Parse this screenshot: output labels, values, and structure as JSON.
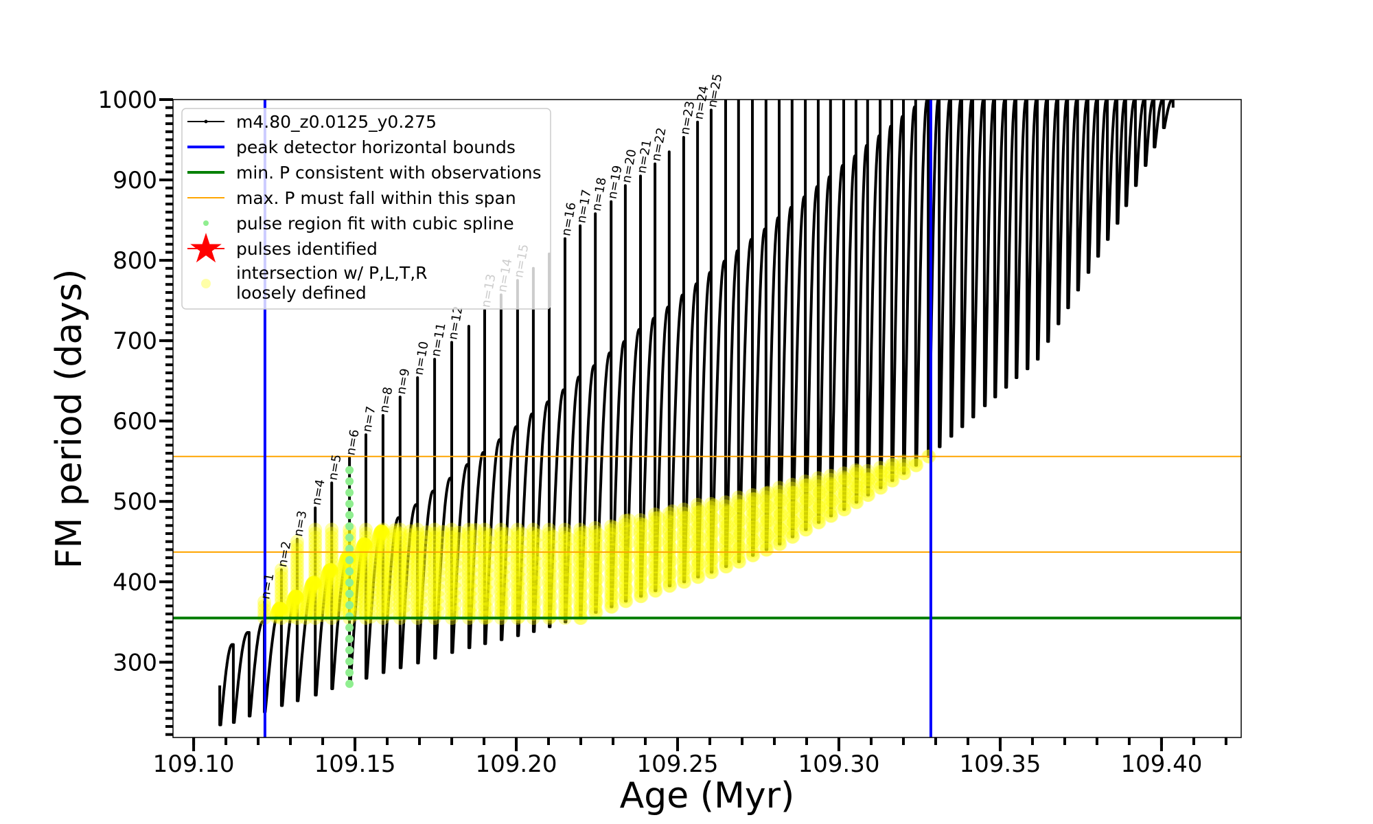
{
  "chart_data": {
    "type": "line",
    "xlabel": "Age (Myr)",
    "ylabel": "FM period (days)",
    "xlim": [
      109.0936,
      109.4247
    ],
    "ylim": [
      206.3,
      1000
    ],
    "xticks": [
      "109.10",
      "109.15",
      "109.20",
      "109.25",
      "109.30",
      "109.35",
      "109.40"
    ],
    "xtick_values": [
      109.1,
      109.15,
      109.2,
      109.25,
      109.3,
      109.35,
      109.4
    ],
    "xminor_step": 0.01,
    "yticks": [
      "300",
      "400",
      "500",
      "600",
      "700",
      "800",
      "900",
      "1000"
    ],
    "ytick_values": [
      300,
      400,
      500,
      600,
      700,
      800,
      900,
      1000
    ],
    "yminor_step": 10,
    "grid": false,
    "legend_placement": "upper-left",
    "series": [
      {
        "name": "m4.80_z0.0125_y0.275",
        "color": "#000000",
        "pulse_columns": [
          "age_myr",
          "min_period_after_pulse",
          "quiescent_peak_period",
          "pulse_peak_period",
          "label",
          "loosely_defined_upper_period"
        ],
        "pulses": [
          [
            109.1081,
            222,
            271,
            271,
            "",
            null
          ],
          [
            109.1123,
            225,
            322,
            322,
            "",
            null
          ],
          [
            109.1172,
            233,
            337,
            337,
            "",
            null
          ],
          [
            109.1219,
            238,
            351,
            375,
            "n=1",
            375
          ],
          [
            109.1272,
            246,
            367,
            415,
            "n=2",
            415
          ],
          [
            109.1321,
            252,
            382,
            453,
            "n=3",
            453
          ],
          [
            109.1377,
            259,
            399,
            492,
            "n=4",
            465
          ],
          [
            109.1428,
            267,
            415,
            523,
            "n=5",
            465
          ],
          [
            109.1483,
            274,
            431,
            554,
            "n=6",
            465
          ],
          [
            109.1534,
            280,
            447,
            583,
            "n=7",
            465
          ],
          [
            109.1587,
            287,
            463,
            607,
            "n=8",
            465
          ],
          [
            109.164,
            293,
            480,
            630,
            "n=9",
            465
          ],
          [
            109.1694,
            299,
            496,
            654,
            "n=10",
            465
          ],
          [
            109.1747,
            305,
            513,
            677,
            "n=11",
            465
          ],
          [
            109.18,
            312,
            529,
            698,
            "n=12",
            465
          ],
          [
            109.1853,
            318,
            546,
            718,
            "",
            465
          ],
          [
            109.1902,
            323,
            561,
            738,
            "n=13",
            465
          ],
          [
            109.1953,
            328,
            577,
            757,
            "n=14",
            465
          ],
          [
            109.2004,
            333,
            593,
            775,
            "n=15",
            465
          ],
          [
            109.2053,
            338,
            609,
            790,
            "",
            465
          ],
          [
            109.2102,
            344,
            624,
            808,
            "",
            465
          ],
          [
            109.2151,
            350,
            639,
            827,
            "n=16",
            465
          ],
          [
            109.2198,
            355,
            655,
            843,
            "n=17",
            465
          ],
          [
            109.2245,
            362,
            669,
            858,
            "n=18",
            469
          ],
          [
            109.2294,
            369,
            685,
            873,
            "n=19",
            473
          ],
          [
            109.2338,
            376,
            699,
            893,
            "n=20",
            477
          ],
          [
            109.2385,
            382,
            714,
            905,
            "n=21",
            481
          ],
          [
            109.243,
            389,
            728,
            920,
            "n=22",
            485
          ],
          [
            109.2474,
            395,
            742,
            935,
            "",
            489
          ],
          [
            109.2519,
            400,
            757,
            953,
            "n=23",
            493
          ],
          [
            109.2562,
            406,
            771,
            972,
            "n=24",
            496
          ],
          [
            109.2604,
            412,
            785,
            987,
            "n=25",
            500
          ],
          [
            109.2649,
            419,
            799,
            1000,
            "",
            503
          ],
          [
            109.2689,
            425,
            812,
            1000,
            "",
            507
          ],
          [
            109.2732,
            433,
            826,
            1000,
            "",
            511
          ],
          [
            109.2774,
            440,
            839,
            1000,
            "",
            514
          ],
          [
            109.2815,
            447,
            853,
            1000,
            "",
            518
          ],
          [
            109.2855,
            456,
            866,
            1000,
            "",
            522
          ],
          [
            109.2896,
            465,
            879,
            1000,
            "",
            525
          ],
          [
            109.2936,
            474,
            892,
            1000,
            "",
            529
          ],
          [
            109.2974,
            482,
            904,
            1000,
            "",
            532
          ],
          [
            109.3015,
            490,
            918,
            1000,
            "",
            535
          ],
          [
            109.3053,
            499,
            930,
            1000,
            "",
            539
          ],
          [
            109.3089,
            508,
            943,
            1000,
            "",
            542
          ],
          [
            109.3128,
            517,
            955,
            1000,
            "",
            545
          ],
          [
            109.3164,
            526,
            967,
            1000,
            "",
            548
          ],
          [
            109.32,
            535,
            979,
            1000,
            "",
            551
          ],
          [
            109.3238,
            545,
            991,
            1000,
            "",
            554
          ],
          [
            109.3277,
            556,
            1000,
            1000,
            "",
            557
          ],
          [
            109.3311,
            568,
            1000,
            1000,
            "",
            null
          ],
          [
            109.3347,
            581,
            1000,
            1000,
            "",
            null
          ],
          [
            109.3381,
            593,
            1000,
            1000,
            "",
            null
          ],
          [
            109.3415,
            605,
            1000,
            1000,
            "",
            null
          ],
          [
            109.3451,
            619,
            1000,
            1000,
            "",
            null
          ],
          [
            109.3483,
            630,
            1000,
            1000,
            "",
            null
          ],
          [
            109.3517,
            642,
            1000,
            1000,
            "",
            null
          ],
          [
            109.3549,
            654,
            1000,
            1000,
            "",
            null
          ],
          [
            109.3583,
            665,
            1000,
            1000,
            "",
            null
          ],
          [
            109.3615,
            677,
            1000,
            1000,
            "",
            null
          ],
          [
            109.3647,
            699,
            1000,
            1000,
            "",
            null
          ],
          [
            109.3679,
            721,
            1000,
            1000,
            "",
            null
          ],
          [
            109.3709,
            741,
            1000,
            1000,
            "",
            null
          ],
          [
            109.374,
            763,
            1000,
            1000,
            "",
            null
          ],
          [
            109.3772,
            785,
            1000,
            1000,
            "",
            null
          ],
          [
            109.3802,
            805,
            1000,
            1000,
            "",
            null
          ],
          [
            109.3832,
            826,
            1000,
            1000,
            "",
            null
          ],
          [
            109.3862,
            846,
            1000,
            1000,
            "",
            null
          ],
          [
            109.3889,
            868,
            1000,
            1000,
            "",
            null
          ],
          [
            109.3919,
            893,
            1000,
            1000,
            "",
            null
          ],
          [
            109.3949,
            918,
            1000,
            1000,
            "",
            null
          ],
          [
            109.3977,
            941,
            1000,
            1000,
            "",
            null
          ],
          [
            109.4006,
            965,
            1000,
            1000,
            "",
            null
          ],
          [
            109.4036,
            990,
            1000,
            1000,
            "",
            null
          ]
        ]
      }
    ],
    "peak_detector_bounds": {
      "name": "peak detector horizontal bounds",
      "ages": [
        109.1221,
        109.3285
      ],
      "color": "#0000ff"
    },
    "min_period": {
      "name": "min. P consistent with observations",
      "value": 355,
      "color": "#008000"
    },
    "max_period_span": {
      "name": "max. P must fall within this span",
      "values": [
        437,
        556
      ],
      "color": "#ffa500"
    },
    "spline_fit": {
      "name": "pulse region fit with cubic spline",
      "age": 109.1483,
      "period_range": [
        273,
        552
      ],
      "color": "#90ee90"
    },
    "pulses_identified": {
      "name": "pulses identified",
      "color": "#ff0000"
    },
    "intersection": {
      "name": "intersection w/ P,L,T,R\nloosely defined",
      "color": "#ffff00"
    }
  },
  "legend": {
    "items": [
      "m4.80_z0.0125_y0.275",
      "peak detector horizontal bounds",
      "min. P consistent with observations",
      "max. P must fall within this span",
      "pulse region fit with cubic spline",
      "pulses identified",
      "intersection w/ P,L,T,R",
      "loosely defined"
    ]
  }
}
